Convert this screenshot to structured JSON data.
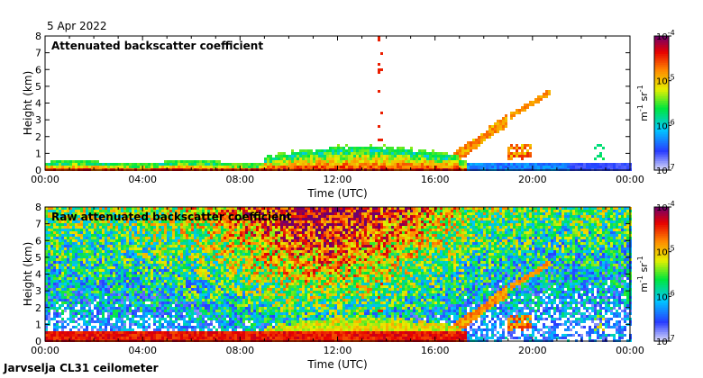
{
  "date_label": "5 Apr 2022",
  "footer_label": "Jarvselja CL31 ceilometer",
  "colors": {
    "palette": [
      "#d8d8f8",
      "#3040ff",
      "#00c8ff",
      "#00ff40",
      "#ffff00",
      "#ff8000",
      "#ff0000",
      "#800080"
    ]
  },
  "chart_data": [
    {
      "type": "heatmap",
      "title": "Attenuated backscatter coefficient",
      "xlabel": "Time (UTC)",
      "ylabel": "Height (km)",
      "x_ticks": [
        "00:00",
        "04:00",
        "08:00",
        "12:00",
        "16:00",
        "20:00",
        "00:00"
      ],
      "y_ticks": [
        "0",
        "1",
        "2",
        "3",
        "4",
        "5",
        "6",
        "7",
        "8"
      ],
      "xlim_hours": [
        0,
        24
      ],
      "ylim_km": [
        0,
        8
      ],
      "colorbar": {
        "label_base": "m",
        "label_exp1": "-1",
        "label_mid": " sr",
        "label_exp2": "-1",
        "ticks": [
          {
            "base": "10",
            "exp": "-4",
            "value": -4
          },
          {
            "base": "10",
            "exp": "-5",
            "value": -5
          },
          {
            "base": "10",
            "exp": "-6",
            "value": -6
          },
          {
            "base": "10",
            "exp": "-7",
            "value": -7
          }
        ],
        "range_log10": [
          -7,
          -4
        ]
      }
    },
    {
      "type": "heatmap",
      "title": "Raw attenuated backscatter coefficient",
      "xlabel": "Time (UTC)",
      "ylabel": "Height (km)",
      "x_ticks": [
        "00:00",
        "04:00",
        "08:00",
        "12:00",
        "16:00",
        "20:00",
        "00:00"
      ],
      "y_ticks": [
        "0",
        "1",
        "2",
        "3",
        "4",
        "5",
        "6",
        "7",
        "8"
      ],
      "xlim_hours": [
        0,
        24
      ],
      "ylim_km": [
        0,
        8
      ],
      "colorbar": {
        "label_base": "m",
        "label_exp1": "-1",
        "label_mid": " sr",
        "label_exp2": "-1",
        "ticks": [
          {
            "base": "10",
            "exp": "-4",
            "value": -4
          },
          {
            "base": "10",
            "exp": "-5",
            "value": -5
          },
          {
            "base": "10",
            "exp": "-6",
            "value": -6
          },
          {
            "base": "10",
            "exp": "-7",
            "value": -7
          }
        ],
        "range_log10": [
          -7,
          -4
        ]
      }
    }
  ]
}
